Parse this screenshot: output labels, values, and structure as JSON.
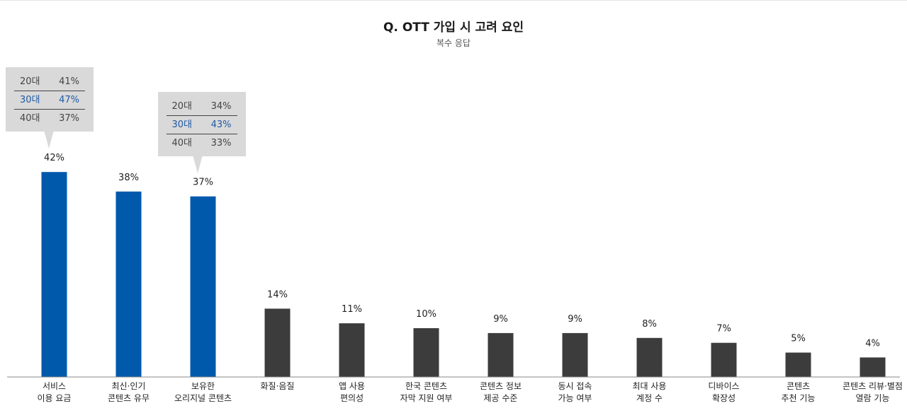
{
  "chart_data": {
    "type": "bar",
    "title": "Q. OTT 가입 시 고려 요인",
    "subtitle": "복수 응답",
    "categories": [
      [
        "서비스",
        "이용 요금"
      ],
      [
        "최신·인기",
        "콘텐츠 유무"
      ],
      [
        "보유한",
        "오리지널 콘텐츠"
      ],
      [
        "화질·음질"
      ],
      [
        "앱 사용",
        "편의성"
      ],
      [
        "한국 콘텐츠",
        "자막 지원 여부"
      ],
      [
        "콘텐츠 정보",
        "제공 수준"
      ],
      [
        "동시 접속",
        "가능 여부"
      ],
      [
        "최대 사용",
        "계정 수"
      ],
      [
        "디바이스",
        "확장성"
      ],
      [
        "콘텐츠",
        "추천 기능"
      ],
      [
        "콘텐츠 리뷰·별점",
        "열람 기능"
      ]
    ],
    "values": [
      42,
      38,
      37,
      14,
      11,
      10,
      9,
      9,
      8,
      7,
      5,
      4
    ],
    "value_labels": [
      "42%",
      "38%",
      "37%",
      "14%",
      "11%",
      "10%",
      "9%",
      "9%",
      "8%",
      "7%",
      "5%",
      "4%"
    ],
    "highlight_count": 3,
    "colors": {
      "highlight": "#0059ab",
      "default": "#3c3c3c"
    },
    "ylim": [
      0,
      45
    ],
    "callouts": [
      {
        "category_index": 0,
        "rows": [
          {
            "label": "20대",
            "value": "41%",
            "highlight": false
          },
          {
            "label": "30대",
            "value": "47%",
            "highlight": true
          },
          {
            "label": "40대",
            "value": "37%",
            "highlight": false
          }
        ]
      },
      {
        "category_index": 2,
        "rows": [
          {
            "label": "20대",
            "value": "34%",
            "highlight": false
          },
          {
            "label": "30대",
            "value": "43%",
            "highlight": true
          },
          {
            "label": "40대",
            "value": "33%",
            "highlight": false
          }
        ]
      }
    ]
  }
}
